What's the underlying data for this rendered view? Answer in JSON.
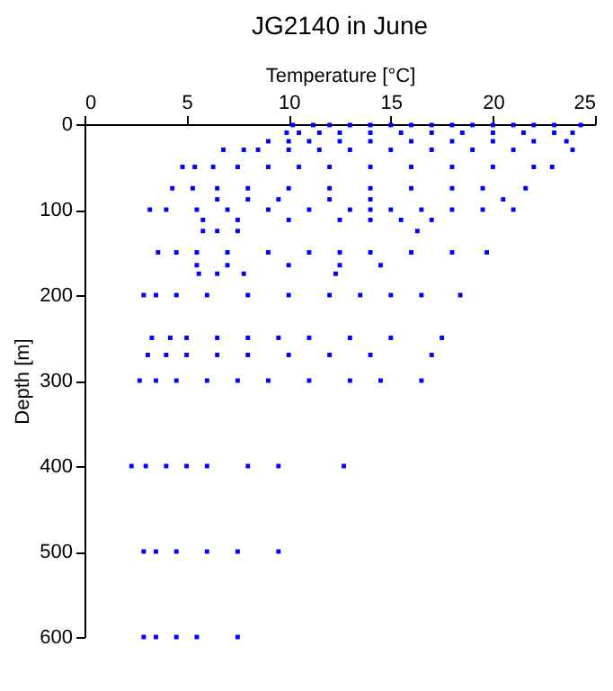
{
  "chart_data": {
    "type": "scatter",
    "title": "JG2140 in June",
    "xlabel": "Temperature [°C]",
    "ylabel": "Depth [m]",
    "xlim": [
      0,
      25
    ],
    "xticks": [
      0,
      5,
      10,
      15,
      20,
      25
    ],
    "ylim": [
      600,
      0
    ],
    "yticks": [
      0,
      100,
      200,
      300,
      400,
      500,
      600
    ],
    "grid": false,
    "marker": "square",
    "series": [
      {
        "color": "#0000ff",
        "x": [
          10.2,
          11.2,
          12,
          13,
          14,
          15,
          16,
          17,
          18,
          19,
          20,
          21,
          22,
          23,
          24.3,
          9.9,
          10.5,
          11.5,
          12.5,
          14,
          15.5,
          17,
          18.5,
          20,
          21.5,
          23,
          23.9,
          9.0,
          10,
          11,
          12.5,
          14,
          16,
          18,
          20,
          22,
          23.6,
          6.8,
          7.8,
          8.5,
          10,
          11.5,
          13,
          15,
          17,
          19,
          21,
          23.9,
          4.8,
          5.4,
          6.3,
          7.5,
          9,
          10.5,
          12,
          14,
          16,
          18,
          20,
          22,
          22.9,
          4.3,
          5.3,
          6.5,
          8,
          10,
          12,
          14,
          16,
          18,
          19.5,
          21.6,
          6.5,
          8,
          9.5,
          12,
          14,
          20.5,
          3.2,
          4,
          5.5,
          7,
          9,
          11,
          13,
          14,
          15,
          16.5,
          18,
          19.5,
          21.0,
          5.8,
          7.5,
          10,
          12.5,
          14,
          15.5,
          17,
          5.8,
          6.5,
          7.5,
          16.3,
          3.6,
          4.5,
          5.5,
          7,
          9,
          11,
          12.5,
          14,
          16,
          18,
          19.7,
          5.5,
          7,
          10,
          12.5,
          14.5,
          5.6,
          6.5,
          7.8,
          12.3,
          2.9,
          3.5,
          4.5,
          6,
          8,
          10,
          12,
          13.5,
          15,
          16.5,
          18.4,
          3.3,
          4.2,
          5,
          6.5,
          8,
          9.5,
          11,
          13,
          15,
          17.5,
          3.1,
          4,
          5,
          6.5,
          8,
          10,
          12,
          14,
          17.0,
          2.7,
          3.5,
          4.5,
          6,
          7.5,
          9,
          11,
          13,
          14.5,
          16.5,
          2.3,
          3,
          4,
          5,
          6,
          8,
          9.5,
          12.7,
          2.9,
          3.5,
          4.5,
          6,
          7.5,
          9.5,
          2.9,
          3.5,
          4.5,
          5.5,
          7.5
        ],
        "values": [
          1,
          1,
          1,
          1,
          1,
          1,
          1,
          1,
          1,
          1,
          1,
          1,
          1,
          1,
          1,
          10,
          10,
          10,
          10,
          10,
          10,
          10,
          10,
          10,
          10,
          10,
          10,
          20,
          20,
          20,
          20,
          20,
          20,
          20,
          20,
          20,
          20,
          30,
          30,
          30,
          30,
          30,
          30,
          30,
          30,
          30,
          30,
          30,
          50,
          50,
          50,
          50,
          50,
          50,
          50,
          50,
          50,
          50,
          50,
          50,
          50,
          75,
          75,
          75,
          75,
          75,
          75,
          75,
          75,
          75,
          75,
          75,
          88,
          88,
          88,
          88,
          88,
          88,
          100,
          100,
          100,
          100,
          100,
          100,
          100,
          100,
          100,
          100,
          100,
          100,
          100,
          112,
          112,
          112,
          112,
          112,
          112,
          112,
          125,
          125,
          125,
          125,
          150,
          150,
          150,
          150,
          150,
          150,
          150,
          150,
          150,
          150,
          150,
          165,
          165,
          165,
          165,
          165,
          175,
          175,
          175,
          175,
          200,
          200,
          200,
          200,
          200,
          200,
          200,
          200,
          200,
          200,
          200,
          250,
          250,
          250,
          250,
          250,
          250,
          250,
          250,
          250,
          250,
          270,
          270,
          270,
          270,
          270,
          270,
          270,
          270,
          270,
          300,
          300,
          300,
          300,
          300,
          300,
          300,
          300,
          300,
          300,
          400,
          400,
          400,
          400,
          400,
          400,
          400,
          400,
          500,
          500,
          500,
          500,
          500,
          500,
          600,
          600,
          600,
          600,
          600
        ]
      }
    ]
  }
}
